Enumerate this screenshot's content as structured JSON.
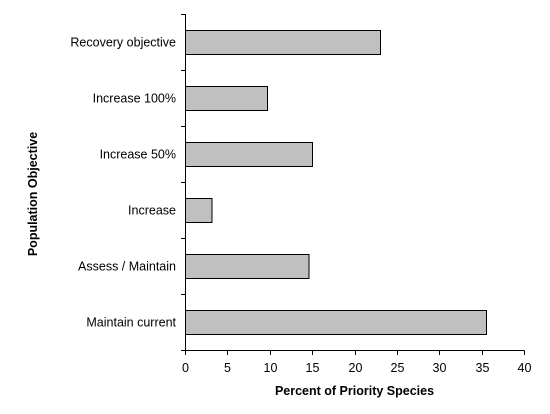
{
  "chart_data": {
    "type": "bar",
    "orientation": "horizontal",
    "categories": [
      "Recovery objective",
      "Increase 100%",
      "Increase 50%",
      "Increase",
      "Assess / Maintain",
      "Maintain current"
    ],
    "values": [
      23,
      9.7,
      15,
      3.1,
      14.6,
      35.5
    ],
    "xlabel": "Percent of Priority Species",
    "ylabel": "Population Objective",
    "xlim": [
      0,
      40
    ],
    "xticks": [
      "0",
      "5",
      "10",
      "15",
      "20",
      "25",
      "30",
      "35",
      "40"
    ],
    "bar_color": "#c0c0c0",
    "grid": false,
    "legend": "none"
  }
}
